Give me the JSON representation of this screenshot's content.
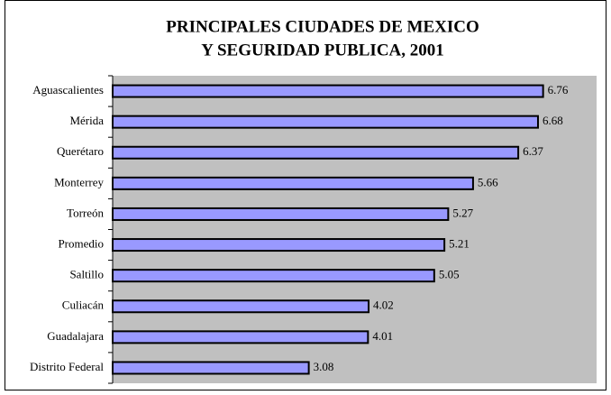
{
  "chart_data": {
    "type": "hbar",
    "title": [
      "PRINCIPALES CIUDADES DE MEXICO",
      "Y SEGURIDAD PUBLICA, 2001"
    ],
    "categories": [
      "Aguascalientes",
      "Mérida",
      "Querétaro",
      "Monterrey",
      "Torreón",
      "Promedio",
      "Saltillo",
      "Culiacán",
      "Guadalajara",
      "Distrito Federal"
    ],
    "values": [
      6.76,
      6.68,
      6.37,
      5.66,
      5.27,
      5.21,
      5.05,
      4.02,
      4.01,
      3.08
    ],
    "color": "#9999ff",
    "xlim": [
      0,
      7.6
    ]
  }
}
